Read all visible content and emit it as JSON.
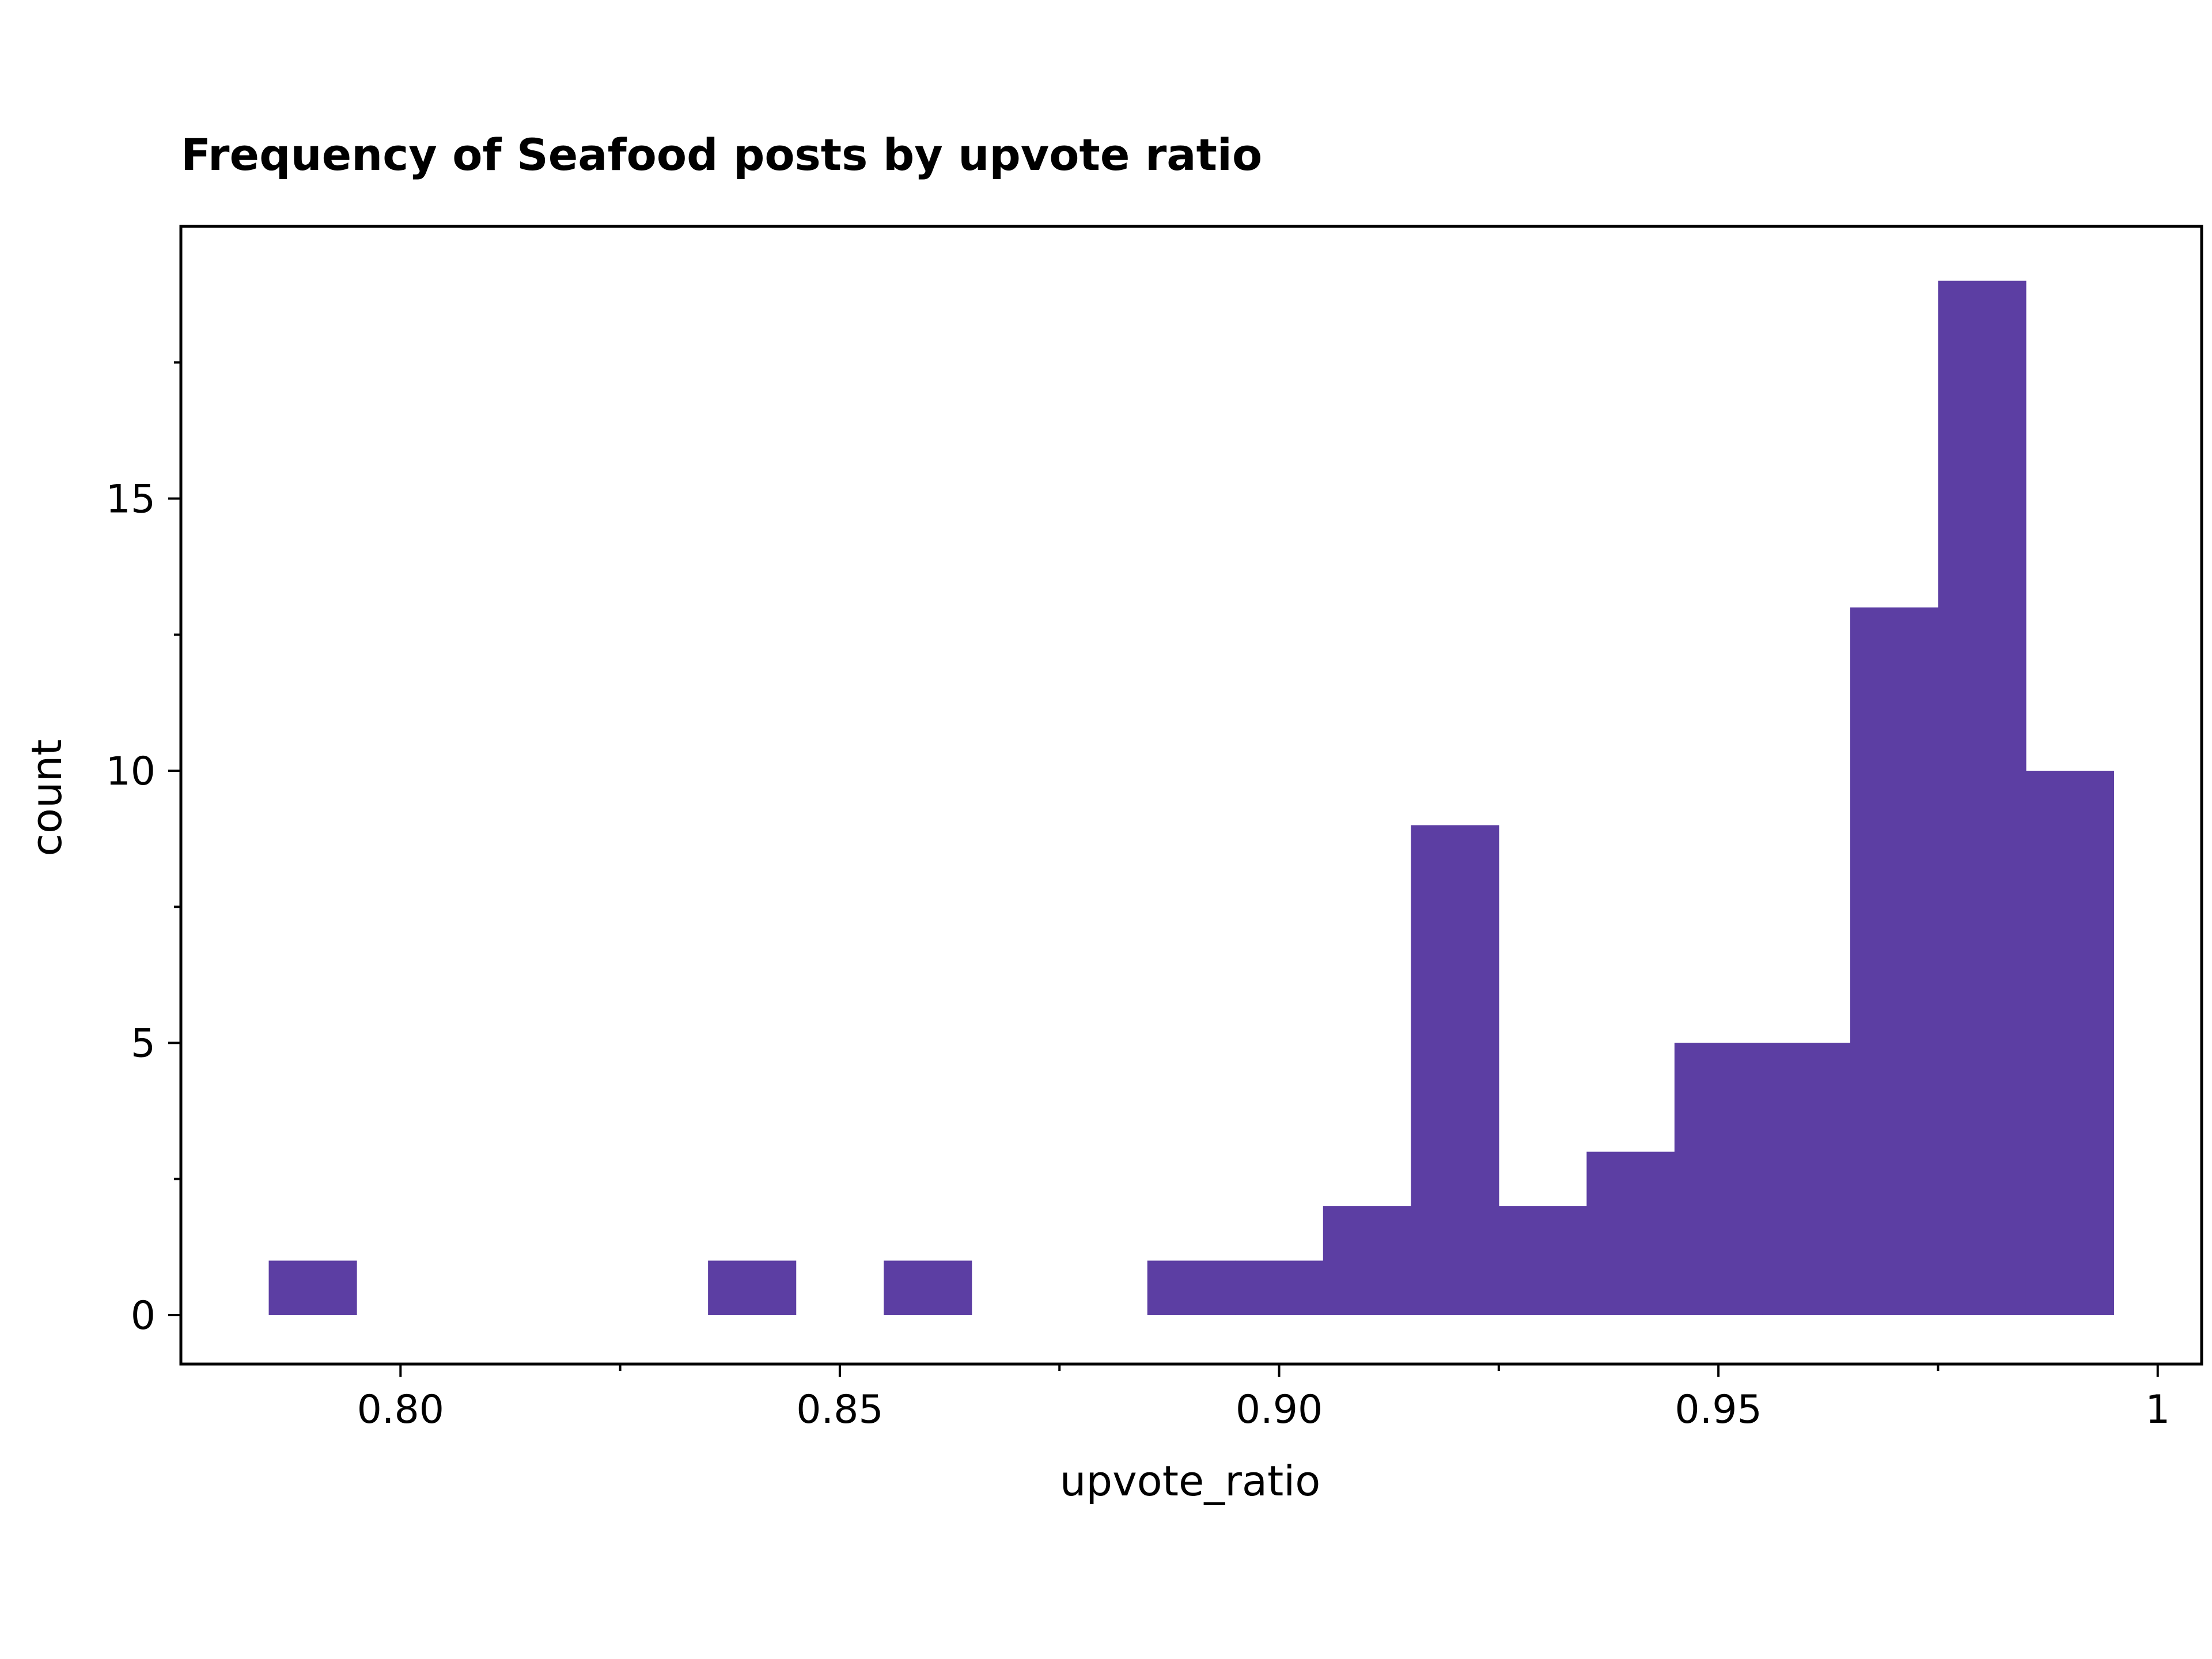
{
  "chart_data": {
    "type": "bar",
    "title": "Frequency of Seafood posts by upvote ratio",
    "xlabel": "upvote_ratio",
    "ylabel": "count",
    "color": "#5c3ea3",
    "xlim": [
      0.775,
      1.005
    ],
    "ylim": [
      -0.9,
      20
    ],
    "bin_width": 0.01,
    "bins": [
      {
        "x": 0.79,
        "count": 1
      },
      {
        "x": 0.84,
        "count": 1
      },
      {
        "x": 0.86,
        "count": 1
      },
      {
        "x": 0.89,
        "count": 1
      },
      {
        "x": 0.9,
        "count": 1
      },
      {
        "x": 0.91,
        "count": 2
      },
      {
        "x": 0.92,
        "count": 9
      },
      {
        "x": 0.93,
        "count": 2
      },
      {
        "x": 0.94,
        "count": 3
      },
      {
        "x": 0.95,
        "count": 5
      },
      {
        "x": 0.96,
        "count": 5
      },
      {
        "x": 0.97,
        "count": 13
      },
      {
        "x": 0.98,
        "count": 19
      },
      {
        "x": 0.99,
        "count": 10
      }
    ],
    "x_ticks": [
      {
        "value": 0.8,
        "label": "0.80"
      },
      {
        "value": 0.85,
        "label": "0.85"
      },
      {
        "value": 0.9,
        "label": "0.90"
      },
      {
        "value": 0.95,
        "label": "0.95"
      },
      {
        "value": 1.0,
        "label": "1"
      }
    ],
    "x_minor_ticks": [
      0.825,
      0.875,
      0.925,
      0.975
    ],
    "y_ticks": [
      {
        "value": 0,
        "label": "0"
      },
      {
        "value": 5,
        "label": "5"
      },
      {
        "value": 10,
        "label": "10"
      },
      {
        "value": 15,
        "label": "15"
      }
    ],
    "y_minor_ticks": [
      2.5,
      7.5,
      12.5,
      17.5
    ],
    "grid": false,
    "legend": "none"
  }
}
